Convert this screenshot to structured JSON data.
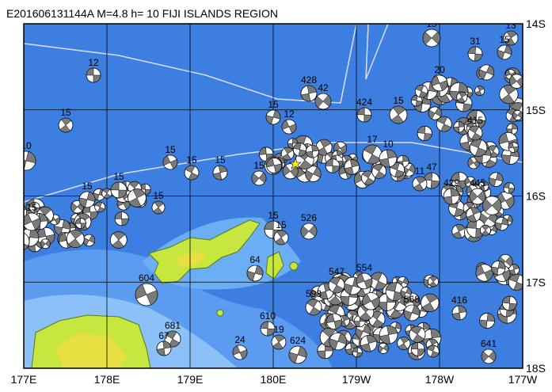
{
  "header": {
    "title": "E201606131144A  M=4.8  h= 10 FIJI ISLANDS REGION"
  },
  "axes": {
    "x_labels": [
      "177E",
      "178E",
      "179E",
      "180E",
      "179W",
      "178W",
      "177W"
    ],
    "y_labels": [
      "14S",
      "15S",
      "16S",
      "17S",
      "18S"
    ]
  },
  "events": [
    {
      "label": "12"
    },
    {
      "label": "15"
    },
    {
      "label": "10"
    },
    {
      "label": "15"
    },
    {
      "label": "15"
    },
    {
      "label": "15"
    },
    {
      "label": "15"
    },
    {
      "label": "15"
    },
    {
      "label": "15"
    },
    {
      "label": "15"
    },
    {
      "label": "15"
    },
    {
      "label": "15"
    },
    {
      "label": "428"
    },
    {
      "label": "42"
    },
    {
      "label": "424"
    },
    {
      "label": "15"
    },
    {
      "label": "15"
    },
    {
      "label": "12"
    },
    {
      "label": "17"
    },
    {
      "label": "10"
    },
    {
      "label": "526"
    },
    {
      "label": "15"
    },
    {
      "label": "15"
    },
    {
      "label": "64"
    },
    {
      "label": "604"
    },
    {
      "label": "547"
    },
    {
      "label": "416"
    },
    {
      "label": "641"
    },
    {
      "label": "610"
    },
    {
      "label": "19"
    },
    {
      "label": "624"
    },
    {
      "label": "24"
    },
    {
      "label": "681"
    },
    {
      "label": "67"
    },
    {
      "label": "15"
    },
    {
      "label": "31"
    },
    {
      "label": "13"
    },
    {
      "label": "15"
    },
    {
      "label": "20"
    },
    {
      "label": "415"
    },
    {
      "label": "429"
    },
    {
      "label": "445"
    },
    {
      "label": "47"
    },
    {
      "label": "11"
    },
    {
      "label": "568"
    },
    {
      "label": "554"
    },
    {
      "label": "593"
    }
  ]
}
